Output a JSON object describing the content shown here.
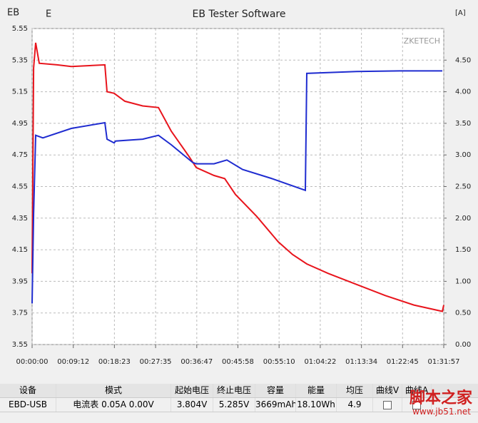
{
  "chart_data": {
    "type": "line",
    "title": "EB Tester Software",
    "corner_labels": [
      "EB",
      "E"
    ],
    "y2label": "[A]",
    "watermark": "ZKETECH",
    "xlim": [
      0,
      5517
    ],
    "xticks": [
      {
        "value": 0,
        "label": "00:00:00"
      },
      {
        "value": 552,
        "label": "00:09:12"
      },
      {
        "value": 1103,
        "label": "00:18:23"
      },
      {
        "value": 1655,
        "label": "00:27:35"
      },
      {
        "value": 2207,
        "label": "00:36:47"
      },
      {
        "value": 2758,
        "label": "00:45:58"
      },
      {
        "value": 3310,
        "label": "00:55:10"
      },
      {
        "value": 3862,
        "label": "01:04:22"
      },
      {
        "value": 4414,
        "label": "01:13:34"
      },
      {
        "value": 4965,
        "label": "01:22:45"
      },
      {
        "value": 5517,
        "label": "01:31:57"
      }
    ],
    "ylim": [
      3.55,
      5.55
    ],
    "yticks": [
      3.55,
      3.75,
      3.95,
      4.15,
      4.35,
      4.55,
      4.75,
      4.95,
      5.15,
      5.35,
      5.55
    ],
    "y2lim": [
      0,
      5
    ],
    "y2ticks": [
      {
        "value": 0,
        "label": "0.00"
      },
      {
        "value": 0.5,
        "label": "0.50"
      },
      {
        "value": 1,
        "label": "1.00"
      },
      {
        "value": 1.5,
        "label": "1.50"
      },
      {
        "value": 2,
        "label": "2.00"
      },
      {
        "value": 2.5,
        "label": "2.50"
      },
      {
        "value": 3,
        "label": "3.00"
      },
      {
        "value": 3.5,
        "label": "3.50"
      },
      {
        "value": 4,
        "label": "4.00"
      },
      {
        "value": 4.5,
        "label": "4.50"
      }
    ],
    "grid": true,
    "series": [
      {
        "name": "V",
        "color": "#e8141c",
        "axis": "y",
        "x": [
          0,
          20,
          48,
          96,
          335,
          526,
          975,
          1004,
          1100,
          1243,
          1482,
          1693,
          1865,
          2104,
          2200,
          2438,
          2582,
          2725,
          3012,
          3299,
          3490,
          3681,
          3968,
          4350,
          4733,
          5116,
          5498,
          5517
        ],
        "values": [
          4.0,
          5.3,
          5.46,
          5.33,
          5.32,
          5.31,
          5.32,
          5.15,
          5.14,
          5.09,
          5.06,
          5.05,
          4.9,
          4.74,
          4.67,
          4.62,
          4.6,
          4.5,
          4.36,
          4.2,
          4.12,
          4.06,
          4.0,
          3.93,
          3.86,
          3.8,
          3.76,
          3.8
        ]
      },
      {
        "name": "A",
        "color": "#1f2cd0",
        "axis": "y2",
        "x": [
          0,
          20,
          48,
          144,
          526,
          975,
          1004,
          1100,
          1119,
          1482,
          1693,
          1865,
          2152,
          2200,
          2438,
          2610,
          2821,
          3203,
          3662,
          3681,
          4350,
          4924,
          5498
        ],
        "values": [
          0.65,
          2.07,
          3.31,
          3.27,
          3.42,
          3.51,
          3.25,
          3.19,
          3.22,
          3.25,
          3.31,
          3.16,
          2.88,
          2.86,
          2.86,
          2.92,
          2.77,
          2.63,
          2.44,
          4.29,
          4.32,
          4.33,
          4.33
        ]
      }
    ]
  },
  "table": {
    "headers": [
      "设备",
      "模式",
      "起始电压",
      "终止电压",
      "容量",
      "能量",
      "均压",
      "曲线V",
      "曲线A"
    ],
    "rows": [
      [
        "EBD-USB",
        "电流表  0.05A  0.00V",
        "3.804V",
        "5.285V",
        "3669mAh",
        "18.10Wh",
        "4.9"
      ]
    ]
  },
  "watermark": {
    "site": "脚本之家",
    "url": "www.jb51.net"
  }
}
